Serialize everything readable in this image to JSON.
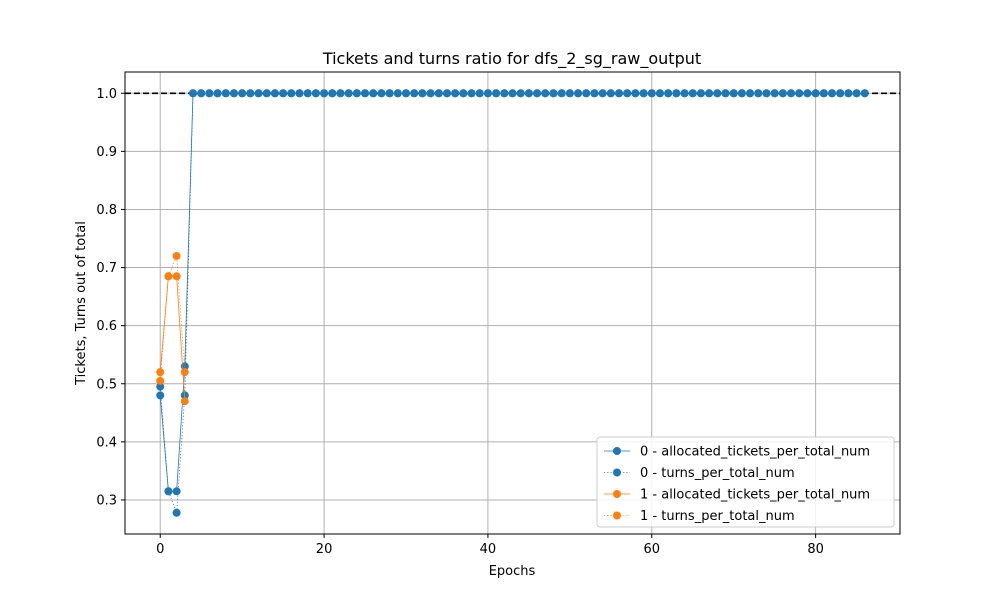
{
  "chart_data": {
    "type": "line",
    "title": "Tickets and turns ratio for dfs_2_sg_raw_output",
    "xlabel": "Epochs",
    "ylabel": "Tickets, Turns out of total",
    "xlim": [
      -4.3,
      90.3
    ],
    "ylim": [
      0.2414,
      1.0366
    ],
    "xticks": [
      0,
      20,
      40,
      60,
      80
    ],
    "yticks": [
      0.3,
      0.4,
      0.5,
      0.6,
      0.7,
      0.8,
      0.9,
      1.0
    ],
    "xtick_labels": [
      "0",
      "20",
      "40",
      "60",
      "80"
    ],
    "ytick_labels": [
      "0.3",
      "0.4",
      "0.5",
      "0.6",
      "0.7",
      "0.8",
      "0.9",
      "1.0"
    ],
    "grid": true,
    "legend_position": "lower-right",
    "reference_line": {
      "y": 1.0,
      "style": "dashed",
      "color": "#000000"
    },
    "x_end": 86,
    "series": [
      {
        "name": "0 - allocated_tickets_per_total_num",
        "color": "#1f77b4",
        "linestyle": "solid",
        "head": [
          0.48,
          0.315,
          0.315,
          0.53,
          1.0
        ],
        "tail_value": 1.0
      },
      {
        "name": "0 - turns_per_total_num",
        "color": "#1f77b4",
        "linestyle": "dotted",
        "head": [
          0.495,
          0.315,
          0.278,
          0.48,
          1.0
        ],
        "tail_value": 1.0
      },
      {
        "name": "1 - allocated_tickets_per_total_num",
        "color": "#ff7f0e",
        "linestyle": "solid",
        "head": [
          0.52,
          0.685,
          0.685,
          0.47
        ],
        "tail_value": null
      },
      {
        "name": "1 - turns_per_total_num",
        "color": "#ff7f0e",
        "linestyle": "dotted",
        "head": [
          0.505,
          0.685,
          0.72,
          0.52
        ],
        "tail_value": null
      }
    ]
  }
}
